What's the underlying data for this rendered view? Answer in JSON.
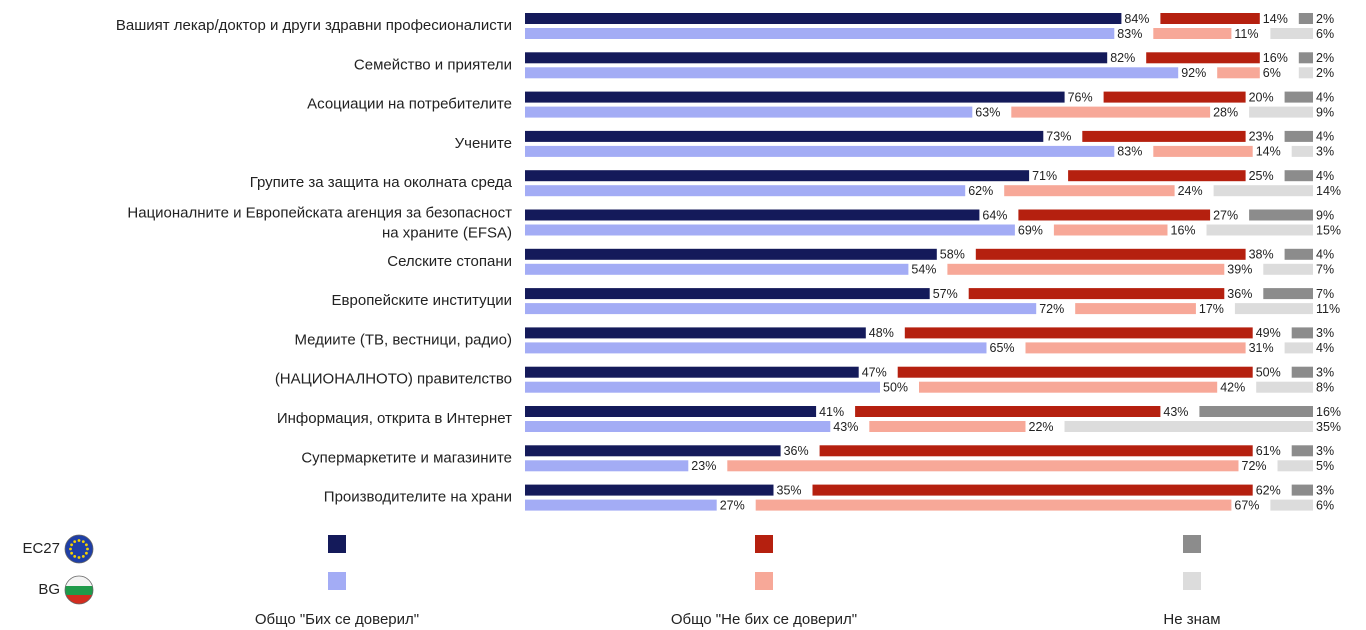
{
  "chart_data": {
    "type": "stacked-bar-horizontal",
    "categories": [
      "Вашият лекар/доктор и други здравни професионалисти",
      "Семейство и приятели",
      "Асоциации на потребителите",
      "Учените",
      "Групите за защита на околната среда",
      "Националните и Европейската агенция за безопасност на храните (EFSA)",
      "Селските стопани",
      "Европейските институции",
      "Медиите (ТВ, вестници, радио)",
      "(НАЦИОНАЛНОТО) правителство",
      "Информация, открита в Интернет",
      "Супермаркетите и магазините",
      "Производителите на храни"
    ],
    "segments": [
      "Общо \"Бих се доверил\"",
      "Общо \"Не бих се доверил\"",
      "Не знам"
    ],
    "groups": [
      {
        "name": "EC27",
        "series": [
          {
            "color": "#141a5a",
            "values": [
              84,
              82,
              76,
              73,
              71,
              64,
              58,
              57,
              48,
              47,
              41,
              36,
              35
            ],
            "value_labels": [
              "84%",
              "82%",
              "76%",
              "73%",
              "71%",
              "64%",
              "58%",
              "57%",
              "48%",
              "47%",
              "41%",
              "36%",
              "35%"
            ]
          },
          {
            "color": "#b5200f",
            "values": [
              14,
              16,
              20,
              23,
              25,
              27,
              38,
              36,
              49,
              50,
              43,
              61,
              62
            ],
            "value_labels": [
              "14%",
              "16%",
              "20%",
              "23%",
              "25%",
              "27%",
              "38%",
              "36%",
              "49%",
              "50%",
              "43%",
              "61%",
              "62%"
            ]
          },
          {
            "color": "#8c8c8c",
            "values": [
              2,
              2,
              4,
              4,
              4,
              9,
              4,
              7,
              3,
              3,
              16,
              3,
              3
            ],
            "value_labels": [
              "2%",
              "2%",
              "4%",
              "4%",
              "4%",
              "9%",
              "4%",
              "7%",
              "3%",
              "3%",
              "16%",
              "3%",
              "3%"
            ]
          }
        ]
      },
      {
        "name": "BG",
        "series": [
          {
            "color": "#a3acf5",
            "values": [
              83,
              92,
              63,
              83,
              62,
              69,
              54,
              72,
              65,
              50,
              43,
              23,
              27
            ],
            "value_labels": [
              "83%",
              "92%",
              "63%",
              "83%",
              "62%",
              "69%",
              "54%",
              "72%",
              "65%",
              "50%",
              "43%",
              "23%",
              "27%"
            ]
          },
          {
            "color": "#f7a898",
            "values": [
              11,
              6,
              28,
              14,
              24,
              16,
              39,
              17,
              31,
              42,
              22,
              72,
              67
            ],
            "value_labels": [
              "11%",
              "6%",
              "28%",
              "14%",
              "24%",
              "16%",
              "39%",
              "17%",
              "31%",
              "42%",
              "22%",
              "72%",
              "67%"
            ]
          },
          {
            "color": "#dcdcdc",
            "values": [
              6,
              2,
              9,
              3,
              14,
              15,
              7,
              11,
              4,
              8,
              35,
              5,
              6
            ],
            "value_labels": [
              "6%",
              "2%",
              "9%",
              "3%",
              "14%",
              "15%",
              "7%",
              "11%",
              "4%",
              "8%",
              "35%",
              "5%",
              "6%"
            ]
          }
        ]
      }
    ]
  }
}
